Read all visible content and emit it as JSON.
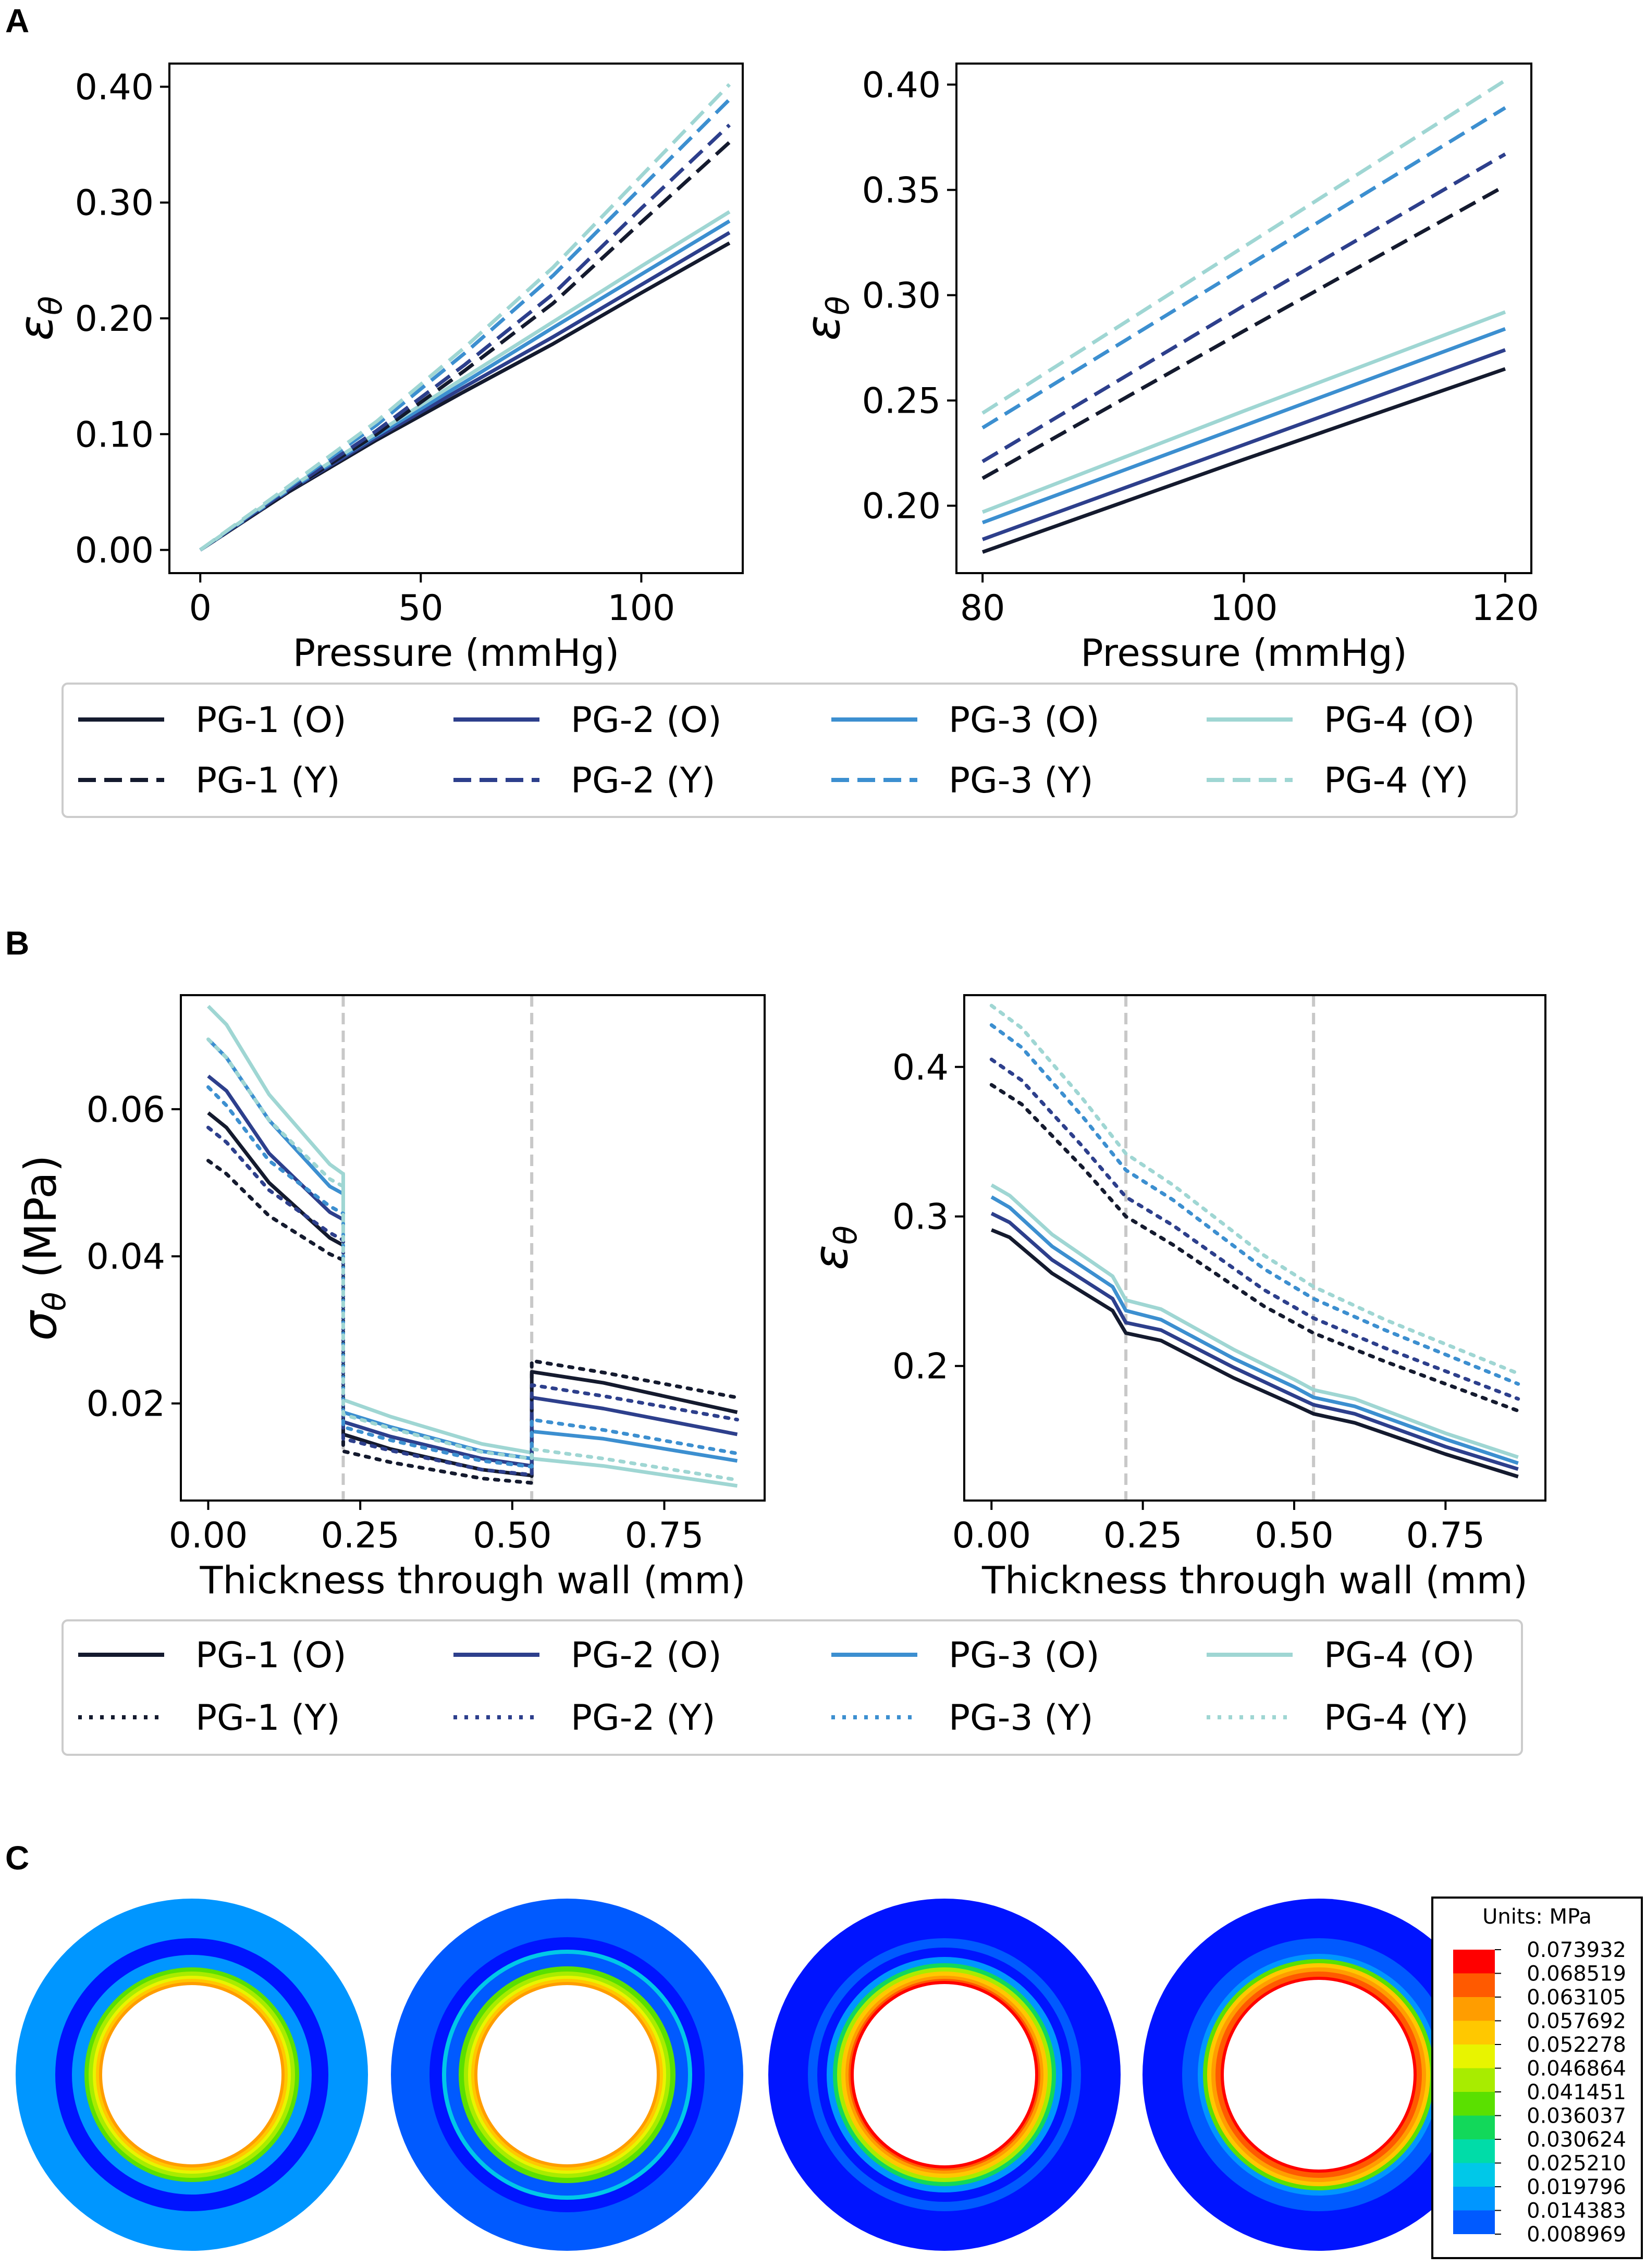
{
  "panels": {
    "A": "A",
    "B": "B",
    "C": "C"
  },
  "colors": {
    "pg1": "#141a2e",
    "pg2": "#2d3f8c",
    "pg3": "#3c8fd0",
    "pg4": "#9fd6d3"
  },
  "chart_data": [
    {
      "type": "line",
      "panel": "A-left",
      "xlabel": "Pressure (mmHg)",
      "ylabel": "εθ",
      "xlim": [
        -7,
        123
      ],
      "ylim": [
        -0.02,
        0.42
      ],
      "xticks": [
        0,
        50,
        100
      ],
      "xtick_labels": [
        "0",
        "50",
        "100"
      ],
      "yticks": [
        0,
        0.1,
        0.2,
        0.3,
        0.4
      ],
      "ytick_labels": [
        "0.00",
        "0.10",
        "0.20",
        "0.30",
        "0.40"
      ],
      "vlines": [],
      "series": [
        {
          "name": "PG-1 (O)",
          "color": "#141a2e",
          "dash": "solid",
          "x": [
            0,
            20,
            40,
            60,
            80,
            100,
            120
          ],
          "y": [
            0,
            0.05,
            0.095,
            0.137,
            0.178,
            0.222,
            0.265
          ]
        },
        {
          "name": "PG-2 (O)",
          "color": "#2d3f8c",
          "dash": "solid",
          "x": [
            0,
            20,
            40,
            60,
            80,
            100,
            120
          ],
          "y": [
            0,
            0.051,
            0.097,
            0.141,
            0.184,
            0.229,
            0.274
          ]
        },
        {
          "name": "PG-3 (O)",
          "color": "#3c8fd0",
          "dash": "solid",
          "x": [
            0,
            20,
            40,
            60,
            80,
            100,
            120
          ],
          "y": [
            0,
            0.052,
            0.099,
            0.145,
            0.192,
            0.238,
            0.284
          ]
        },
        {
          "name": "PG-4 (O)",
          "color": "#9fd6d3",
          "dash": "solid",
          "x": [
            0,
            20,
            40,
            60,
            80,
            100,
            120
          ],
          "y": [
            0,
            0.053,
            0.101,
            0.149,
            0.197,
            0.245,
            0.292
          ]
        },
        {
          "name": "PG-1 (Y)",
          "color": "#141a2e",
          "dash": "dashed",
          "x": [
            0,
            20,
            40,
            60,
            80,
            100,
            120
          ],
          "y": [
            0,
            0.051,
            0.1,
            0.155,
            0.213,
            0.283,
            0.352
          ]
        },
        {
          "name": "PG-2 (Y)",
          "color": "#2d3f8c",
          "dash": "dashed",
          "x": [
            0,
            20,
            40,
            60,
            80,
            100,
            120
          ],
          "y": [
            0,
            0.052,
            0.103,
            0.16,
            0.221,
            0.295,
            0.367
          ]
        },
        {
          "name": "PG-3 (Y)",
          "color": "#3c8fd0",
          "dash": "dashed",
          "x": [
            0,
            20,
            40,
            60,
            80,
            100,
            120
          ],
          "y": [
            0,
            0.054,
            0.108,
            0.17,
            0.237,
            0.313,
            0.389
          ]
        },
        {
          "name": "PG-4 (Y)",
          "color": "#9fd6d3",
          "dash": "dashed",
          "x": [
            0,
            20,
            40,
            60,
            80,
            100,
            120
          ],
          "y": [
            0,
            0.055,
            0.111,
            0.175,
            0.244,
            0.323,
            0.402
          ]
        }
      ]
    },
    {
      "type": "line",
      "panel": "A-right",
      "xlabel": "Pressure (mmHg)",
      "ylabel": "εθ",
      "xlim": [
        78,
        122
      ],
      "ylim": [
        0.168,
        0.41
      ],
      "xticks": [
        80,
        100,
        120
      ],
      "xtick_labels": [
        "80",
        "100",
        "120"
      ],
      "yticks": [
        0.2,
        0.25,
        0.3,
        0.35,
        0.4
      ],
      "ytick_labels": [
        "0.20",
        "0.25",
        "0.30",
        "0.35",
        "0.40"
      ],
      "vlines": [],
      "series": [
        {
          "name": "PG-1 (O)",
          "color": "#141a2e",
          "dash": "solid",
          "x": [
            80,
            100,
            120
          ],
          "y": [
            0.178,
            0.222,
            0.265
          ]
        },
        {
          "name": "PG-2 (O)",
          "color": "#2d3f8c",
          "dash": "solid",
          "x": [
            80,
            100,
            120
          ],
          "y": [
            0.184,
            0.229,
            0.274
          ]
        },
        {
          "name": "PG-3 (O)",
          "color": "#3c8fd0",
          "dash": "solid",
          "x": [
            80,
            100,
            120
          ],
          "y": [
            0.192,
            0.238,
            0.284
          ]
        },
        {
          "name": "PG-4 (O)",
          "color": "#9fd6d3",
          "dash": "solid",
          "x": [
            80,
            100,
            120
          ],
          "y": [
            0.197,
            0.245,
            0.292
          ]
        },
        {
          "name": "PG-1 (Y)",
          "color": "#141a2e",
          "dash": "dashed",
          "x": [
            80,
            100,
            120
          ],
          "y": [
            0.213,
            0.283,
            0.352
          ]
        },
        {
          "name": "PG-2 (Y)",
          "color": "#2d3f8c",
          "dash": "dashed",
          "x": [
            80,
            100,
            120
          ],
          "y": [
            0.221,
            0.295,
            0.367
          ]
        },
        {
          "name": "PG-3 (Y)",
          "color": "#3c8fd0",
          "dash": "dashed",
          "x": [
            80,
            100,
            120
          ],
          "y": [
            0.237,
            0.313,
            0.389
          ]
        },
        {
          "name": "PG-4 (Y)",
          "color": "#9fd6d3",
          "dash": "dashed",
          "x": [
            80,
            100,
            120
          ],
          "y": [
            0.244,
            0.323,
            0.402
          ]
        }
      ]
    },
    {
      "type": "line",
      "panel": "B-left",
      "xlabel": "Thickness through wall (mm)",
      "ylabel": "σθ (MPa)",
      "xlim": [
        -0.045,
        0.915
      ],
      "ylim": [
        0.0068,
        0.0755
      ],
      "xticks": [
        0,
        0.25,
        0.5,
        0.75
      ],
      "xtick_labels": [
        "0.00",
        "0.25",
        "0.50",
        "0.75"
      ],
      "yticks": [
        0.02,
        0.04,
        0.06
      ],
      "ytick_labels": [
        "0.02",
        "0.04",
        "0.06"
      ],
      "vlines": [
        0.222,
        0.532
      ],
      "series": [
        {
          "name": "PG-1 (O)",
          "color": "#141a2e",
          "dash": "solid",
          "x": [
            0,
            0.03,
            0.1,
            0.2,
            0.222,
            0.222,
            0.3,
            0.45,
            0.532,
            0.532,
            0.65,
            0.87
          ],
          "y": [
            0.0595,
            0.0575,
            0.05,
            0.0425,
            0.0415,
            0.0158,
            0.0138,
            0.011,
            0.0102,
            0.0243,
            0.0228,
            0.0188
          ]
        },
        {
          "name": "PG-2 (O)",
          "color": "#2d3f8c",
          "dash": "solid",
          "x": [
            0,
            0.03,
            0.1,
            0.2,
            0.222,
            0.222,
            0.3,
            0.45,
            0.532,
            0.532,
            0.65,
            0.87
          ],
          "y": [
            0.0645,
            0.0625,
            0.054,
            0.046,
            0.045,
            0.0175,
            0.0155,
            0.0125,
            0.0115,
            0.0208,
            0.0193,
            0.0158
          ]
        },
        {
          "name": "PG-3 (O)",
          "color": "#3c8fd0",
          "dash": "solid",
          "x": [
            0,
            0.03,
            0.1,
            0.2,
            0.222,
            0.222,
            0.3,
            0.45,
            0.532,
            0.532,
            0.65,
            0.87
          ],
          "y": [
            0.0695,
            0.067,
            0.0585,
            0.0495,
            0.0485,
            0.0188,
            0.0168,
            0.0135,
            0.0125,
            0.0162,
            0.0152,
            0.0122
          ]
        },
        {
          "name": "PG-4 (O)",
          "color": "#9fd6d3",
          "dash": "solid",
          "x": [
            0,
            0.03,
            0.1,
            0.2,
            0.222,
            0.222,
            0.3,
            0.45,
            0.532,
            0.532,
            0.65,
            0.87
          ],
          "y": [
            0.074,
            0.0715,
            0.062,
            0.0525,
            0.0512,
            0.0205,
            0.0182,
            0.0145,
            0.0133,
            0.0125,
            0.0115,
            0.0088
          ]
        },
        {
          "name": "PG-1 (Y)",
          "color": "#141a2e",
          "dash": "dotted",
          "x": [
            0,
            0.03,
            0.1,
            0.2,
            0.222,
            0.222,
            0.3,
            0.45,
            0.532,
            0.532,
            0.65,
            0.87
          ],
          "y": [
            0.053,
            0.0512,
            0.0455,
            0.0403,
            0.0395,
            0.0135,
            0.012,
            0.0098,
            0.0092,
            0.0258,
            0.0242,
            0.0208
          ]
        },
        {
          "name": "PG-2 (Y)",
          "color": "#2d3f8c",
          "dash": "dotted",
          "x": [
            0,
            0.03,
            0.1,
            0.2,
            0.222,
            0.222,
            0.3,
            0.45,
            0.532,
            0.532,
            0.65,
            0.87
          ],
          "y": [
            0.0575,
            0.0555,
            0.049,
            0.0432,
            0.0422,
            0.0152,
            0.0136,
            0.011,
            0.0103,
            0.0225,
            0.021,
            0.0178
          ]
        },
        {
          "name": "PG-3 (Y)",
          "color": "#3c8fd0",
          "dash": "dotted",
          "x": [
            0,
            0.03,
            0.1,
            0.2,
            0.222,
            0.222,
            0.3,
            0.45,
            0.532,
            0.532,
            0.65,
            0.87
          ],
          "y": [
            0.063,
            0.0605,
            0.053,
            0.0468,
            0.0458,
            0.0168,
            0.015,
            0.0122,
            0.0114,
            0.0178,
            0.0164,
            0.0132
          ]
        },
        {
          "name": "PG-4 (Y)",
          "color": "#9fd6d3",
          "dash": "dotted",
          "x": [
            0,
            0.03,
            0.1,
            0.2,
            0.222,
            0.222,
            0.3,
            0.45,
            0.532,
            0.532,
            0.65,
            0.87
          ],
          "y": [
            0.0695,
            0.067,
            0.0585,
            0.0505,
            0.0495,
            0.0185,
            0.0166,
            0.0134,
            0.0125,
            0.0138,
            0.0125,
            0.0096
          ]
        }
      ]
    },
    {
      "type": "line",
      "panel": "B-right",
      "xlabel": "Thickness through wall (mm)",
      "ylabel": "εθ",
      "xlim": [
        -0.045,
        0.915
      ],
      "ylim": [
        0.11,
        0.448
      ],
      "xticks": [
        0,
        0.25,
        0.5,
        0.75
      ],
      "xtick_labels": [
        "0.00",
        "0.25",
        "0.50",
        "0.75"
      ],
      "yticks": [
        0.2,
        0.3,
        0.4
      ],
      "ytick_labels": [
        "0.2",
        "0.3",
        "0.4"
      ],
      "vlines": [
        0.222,
        0.532
      ],
      "series": [
        {
          "name": "PG-1 (O)",
          "color": "#141a2e",
          "dash": "solid",
          "x": [
            0,
            0.03,
            0.1,
            0.2,
            0.222,
            0.28,
            0.4,
            0.5,
            0.532,
            0.6,
            0.75,
            0.87
          ],
          "y": [
            0.291,
            0.286,
            0.262,
            0.237,
            0.222,
            0.217,
            0.192,
            0.174,
            0.168,
            0.162,
            0.141,
            0.126
          ]
        },
        {
          "name": "PG-2 (O)",
          "color": "#2d3f8c",
          "dash": "solid",
          "x": [
            0,
            0.03,
            0.1,
            0.2,
            0.222,
            0.28,
            0.4,
            0.5,
            0.532,
            0.6,
            0.75,
            0.87
          ],
          "y": [
            0.302,
            0.296,
            0.271,
            0.245,
            0.229,
            0.224,
            0.199,
            0.18,
            0.174,
            0.168,
            0.146,
            0.131
          ]
        },
        {
          "name": "PG-3 (O)",
          "color": "#3c8fd0",
          "dash": "solid",
          "x": [
            0,
            0.03,
            0.1,
            0.2,
            0.222,
            0.28,
            0.4,
            0.5,
            0.532,
            0.6,
            0.75,
            0.87
          ],
          "y": [
            0.313,
            0.306,
            0.28,
            0.253,
            0.237,
            0.231,
            0.205,
            0.186,
            0.179,
            0.173,
            0.151,
            0.135
          ]
        },
        {
          "name": "PG-4 (O)",
          "color": "#9fd6d3",
          "dash": "solid",
          "x": [
            0,
            0.03,
            0.1,
            0.2,
            0.222,
            0.28,
            0.4,
            0.5,
            0.532,
            0.6,
            0.75,
            0.87
          ],
          "y": [
            0.321,
            0.314,
            0.288,
            0.26,
            0.244,
            0.238,
            0.211,
            0.191,
            0.184,
            0.178,
            0.155,
            0.139
          ]
        },
        {
          "name": "PG-1 (Y)",
          "color": "#141a2e",
          "dash": "dotted",
          "x": [
            0,
            0.05,
            0.15,
            0.222,
            0.3,
            0.45,
            0.532,
            0.65,
            0.87
          ],
          "y": [
            0.388,
            0.375,
            0.333,
            0.3,
            0.281,
            0.24,
            0.222,
            0.203,
            0.17
          ]
        },
        {
          "name": "PG-2 (Y)",
          "color": "#2d3f8c",
          "dash": "dotted",
          "x": [
            0,
            0.05,
            0.15,
            0.222,
            0.3,
            0.45,
            0.532,
            0.65,
            0.87
          ],
          "y": [
            0.405,
            0.391,
            0.347,
            0.313,
            0.294,
            0.251,
            0.232,
            0.212,
            0.178
          ]
        },
        {
          "name": "PG-3 (Y)",
          "color": "#3c8fd0",
          "dash": "dotted",
          "x": [
            0,
            0.05,
            0.15,
            0.222,
            0.3,
            0.45,
            0.532,
            0.65,
            0.87
          ],
          "y": [
            0.428,
            0.413,
            0.367,
            0.331,
            0.311,
            0.265,
            0.245,
            0.224,
            0.188
          ]
        },
        {
          "name": "PG-4 (Y)",
          "color": "#9fd6d3",
          "dash": "dotted",
          "x": [
            0,
            0.05,
            0.15,
            0.222,
            0.3,
            0.45,
            0.532,
            0.65,
            0.87
          ],
          "y": [
            0.441,
            0.426,
            0.379,
            0.342,
            0.321,
            0.274,
            0.253,
            0.231,
            0.195
          ]
        }
      ]
    }
  ],
  "legend_A": {
    "row1": [
      "PG-1 (O)",
      "PG-2 (O)",
      "PG-3 (O)",
      "PG-4 (O)"
    ],
    "row2": [
      "PG-1 (Y)",
      "PG-2 (Y)",
      "PG-3 (Y)",
      "PG-4 (Y)"
    ]
  },
  "legend_B": {
    "row1": [
      "PG-1 (O)",
      "PG-2 (O)",
      "PG-3 (O)",
      "PG-4 (O)"
    ],
    "row2": [
      "PG-1 (Y)",
      "PG-2 (Y)",
      "PG-3 (Y)",
      "PG-4 (Y)"
    ]
  },
  "contour": {
    "title": "Units: MPa",
    "levels": [
      "0.073932",
      "0.068519",
      "0.063105",
      "0.057692",
      "0.052278",
      "0.046864",
      "0.041451",
      "0.036037",
      "0.030624",
      "0.025210",
      "0.019796",
      "0.014383",
      "0.008969"
    ],
    "colors": [
      "#ff0000",
      "#ff5a00",
      "#ff9d00",
      "#ffc800",
      "#e8f400",
      "#a8ec00",
      "#5ae000",
      "#12d85a",
      "#00dca8",
      "#00c8e8",
      "#0096ff",
      "#005aff",
      "#0014ff"
    ]
  }
}
